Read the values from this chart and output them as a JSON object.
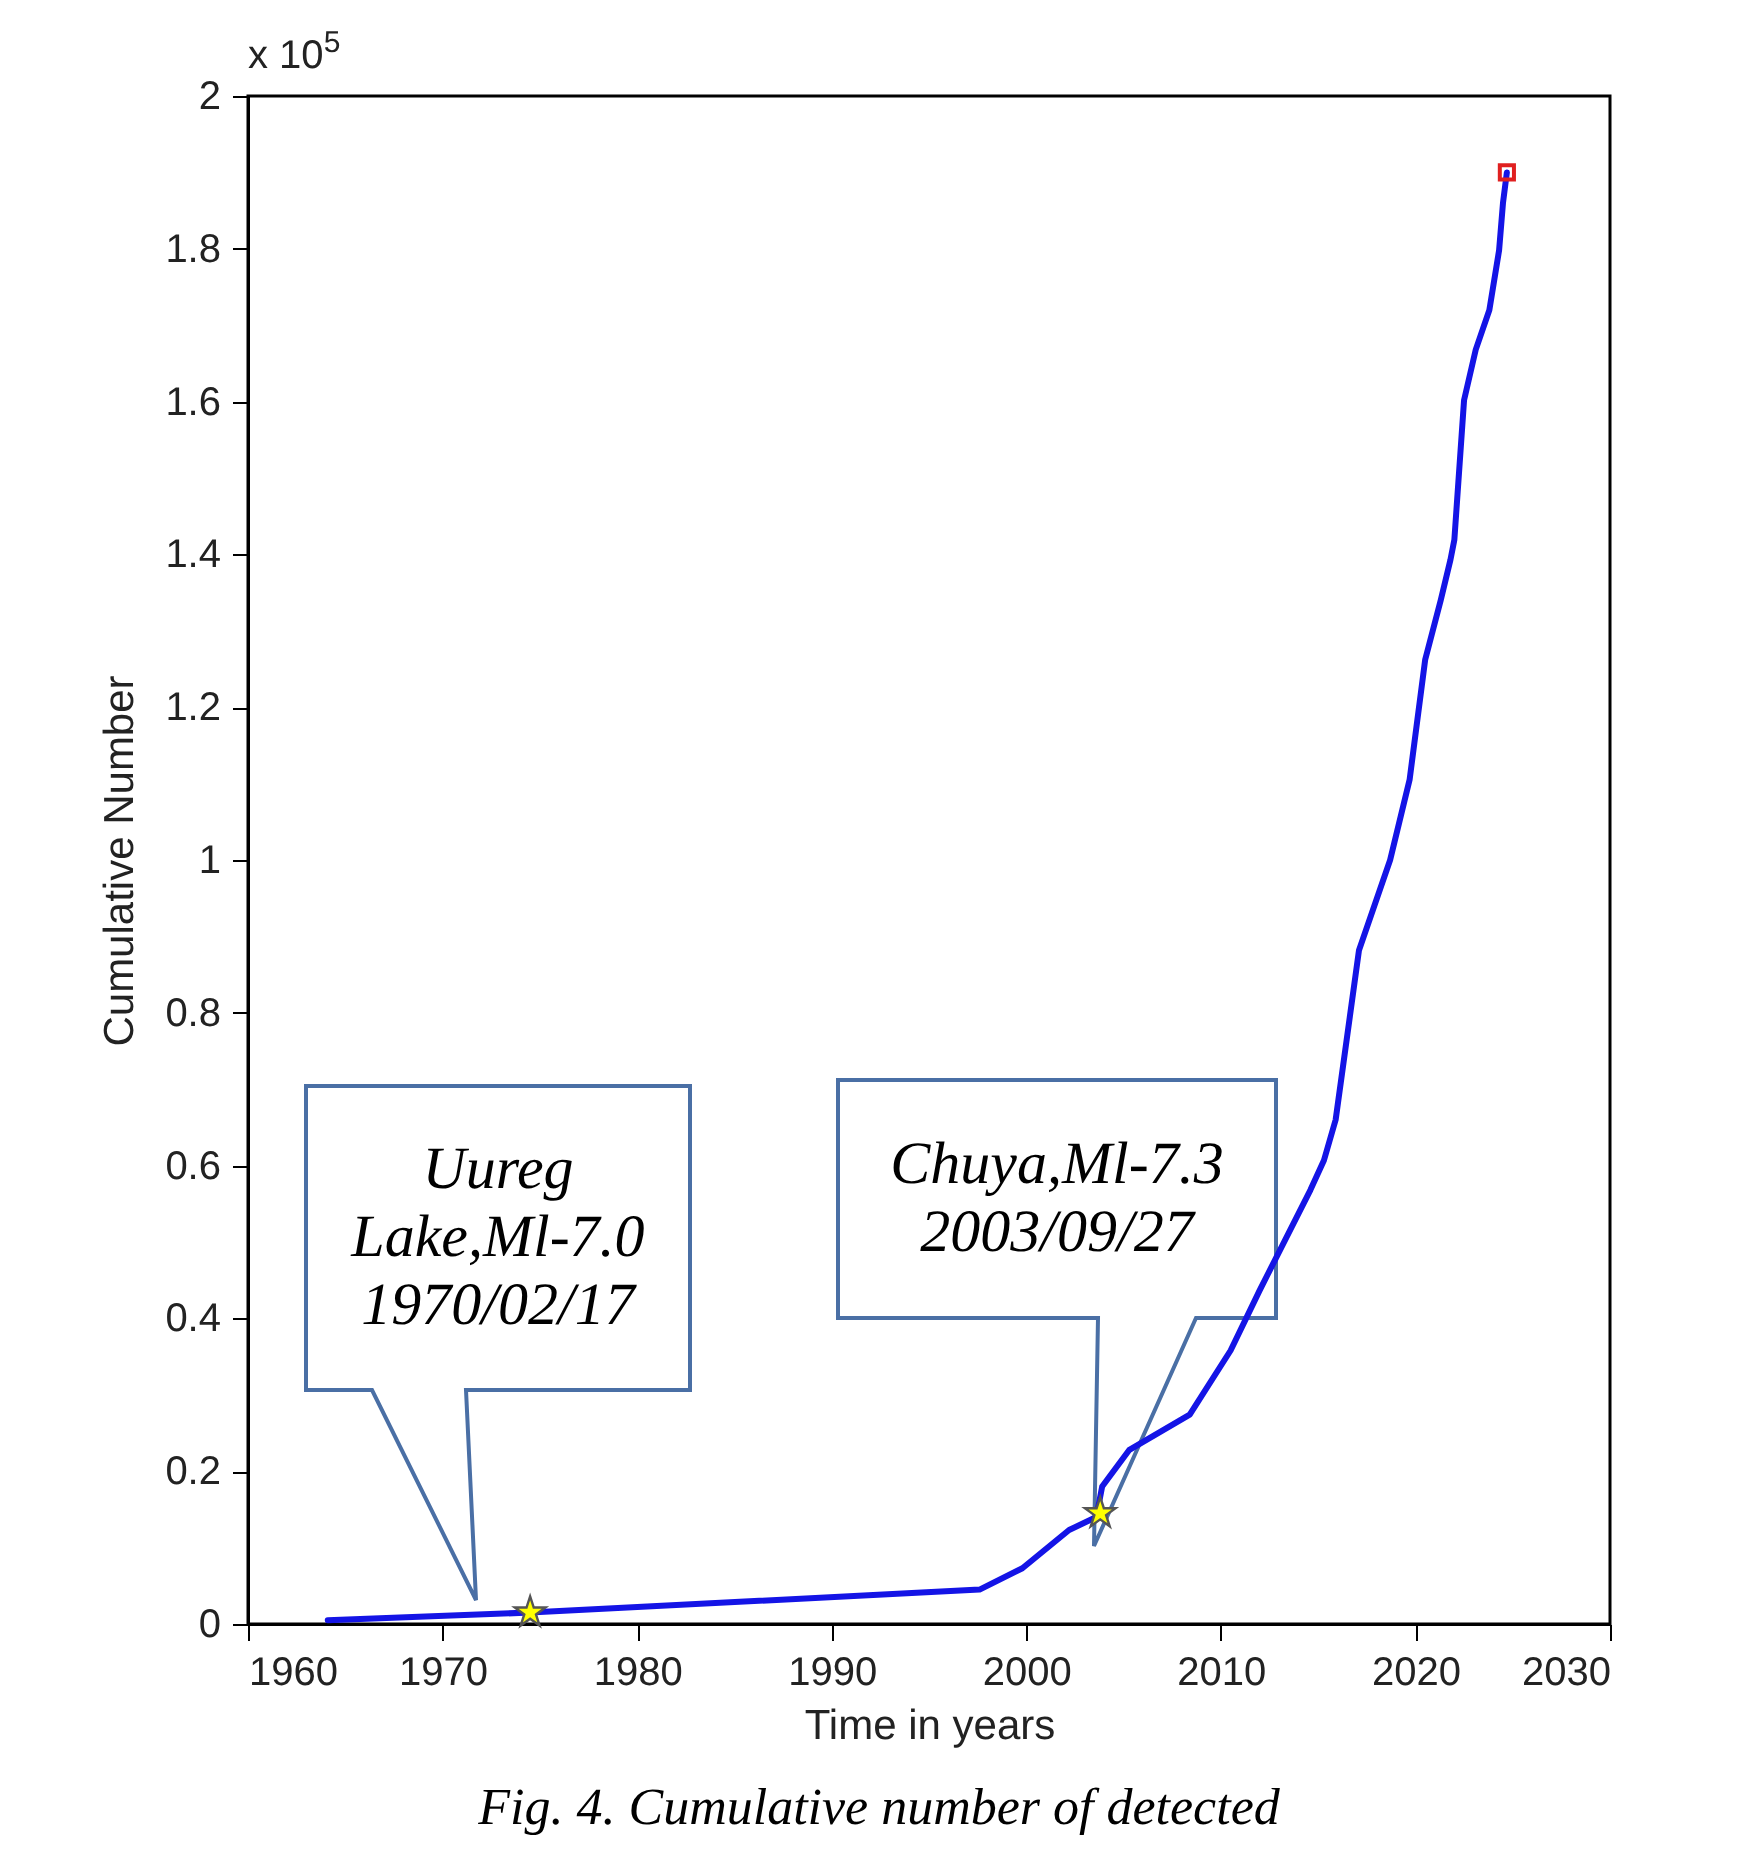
{
  "chart_data": {
    "type": "line",
    "xlabel": "Time in years",
    "ylabel": "Cumulative Number",
    "xlim": [
      1960,
      2030
    ],
    "xticks": [
      1960,
      1970,
      1980,
      1990,
      2000,
      2010,
      2020,
      2030
    ],
    "ylim": [
      0,
      2
    ],
    "yticks": [
      0,
      0.2,
      0.4,
      0.6,
      0.8,
      1,
      1.2,
      1.4,
      1.6,
      1.8,
      2
    ],
    "series": [
      {
        "type": "line",
        "color": "#1414e6",
        "marker": "none",
        "line_style": "solid",
        "x": [
          1964.1,
          1974.5,
          1997.6,
          1999.8,
          2002.2,
          2003.6,
          2003.9,
          2005.3,
          2008.4,
          2010.5,
          2012.0,
          2014.6,
          2015.3,
          2015.9,
          2017.1,
          2018.7,
          2019.7,
          2020.5,
          2021.3,
          2021.8,
          2022.0,
          2022.5,
          2023.1,
          2023.8,
          2024.3,
          2024.5,
          2024.7
        ],
        "values": [
          0.005,
          0.015,
          0.045,
          0.073,
          0.123,
          0.14,
          0.18,
          0.228,
          0.274,
          0.358,
          0.437,
          0.568,
          0.607,
          0.66,
          0.882,
          1.0,
          1.105,
          1.262,
          1.34,
          1.393,
          1.419,
          1.602,
          1.668,
          1.72,
          1.798,
          1.86,
          1.9
        ]
      },
      {
        "type": "scatter",
        "color": "#ffff00",
        "marker": "star",
        "x": [
          1974.5,
          2003.8
        ],
        "values": [
          0.015,
          0.145
        ]
      },
      {
        "type": "scatter",
        "color": "#e02020",
        "marker": "square",
        "x": [
          2024.7
        ],
        "values": [
          1.9
        ]
      }
    ],
    "annotations": [
      "Uureg\nLake,Ml-7.0\n1970/02/17",
      "Chuya,Ml-7.3\n2003/09/27",
      "x 10$^{5}$",
      "Fig. 4. Cumulative number of detected"
    ]
  }
}
